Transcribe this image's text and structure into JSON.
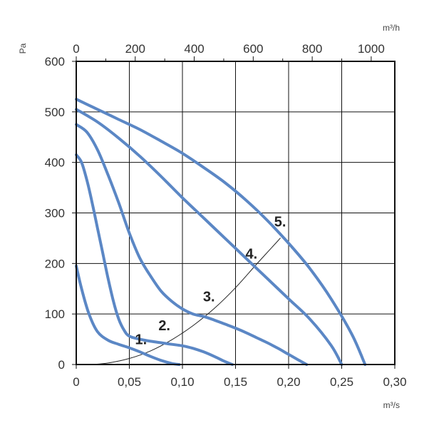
{
  "chart_data": {
    "type": "line",
    "title": "",
    "xlabel": "m³/s",
    "ylabel": "Pa",
    "x2label": "m³/h",
    "xlim": [
      0,
      0.3
    ],
    "ylim": [
      0,
      600
    ],
    "x2lim": [
      0,
      1080
    ],
    "grid": true,
    "x_ticks": [
      0,
      0.05,
      0.1,
      0.15,
      0.2,
      0.25,
      0.3
    ],
    "x_tick_labels": [
      "0",
      "0,05",
      "0,10",
      "0,15",
      "0,20",
      "0,25",
      "0,30"
    ],
    "y_ticks": [
      0,
      100,
      200,
      300,
      400,
      500,
      600
    ],
    "y_tick_labels": [
      "0",
      "100",
      "200",
      "300",
      "400",
      "500",
      "600"
    ],
    "x2_ticks": [
      0,
      200,
      400,
      600,
      800,
      1000
    ],
    "x2_tick_labels": [
      "0",
      "200",
      "400",
      "600",
      "800",
      "1000"
    ],
    "curve_color": "#5b87c5",
    "series": [
      {
        "label": "1.",
        "label_at": [
          0.061,
          40
        ],
        "points": [
          [
            0,
            195
          ],
          [
            0.005,
            150
          ],
          [
            0.012,
            100
          ],
          [
            0.02,
            65
          ],
          [
            0.03,
            48
          ],
          [
            0.04,
            40
          ],
          [
            0.05,
            33
          ],
          [
            0.06,
            25
          ],
          [
            0.07,
            16
          ],
          [
            0.08,
            8
          ],
          [
            0.09,
            2
          ],
          [
            0.097,
            0
          ]
        ]
      },
      {
        "label": "2.",
        "label_at": [
          0.083,
          68
        ],
        "points": [
          [
            0,
            415
          ],
          [
            0.005,
            400
          ],
          [
            0.01,
            365
          ],
          [
            0.015,
            320
          ],
          [
            0.02,
            270
          ],
          [
            0.025,
            220
          ],
          [
            0.03,
            170
          ],
          [
            0.035,
            125
          ],
          [
            0.04,
            90
          ],
          [
            0.045,
            68
          ],
          [
            0.05,
            56
          ],
          [
            0.06,
            50
          ],
          [
            0.07,
            46
          ],
          [
            0.08,
            43
          ],
          [
            0.09,
            40
          ],
          [
            0.1,
            37
          ],
          [
            0.11,
            32
          ],
          [
            0.12,
            25
          ],
          [
            0.13,
            16
          ],
          [
            0.14,
            6
          ],
          [
            0.147,
            0
          ]
        ]
      },
      {
        "label": "3.",
        "label_at": [
          0.125,
          125
        ],
        "points": [
          [
            0,
            475
          ],
          [
            0.01,
            460
          ],
          [
            0.02,
            425
          ],
          [
            0.03,
            375
          ],
          [
            0.04,
            320
          ],
          [
            0.05,
            260
          ],
          [
            0.06,
            210
          ],
          [
            0.07,
            175
          ],
          [
            0.08,
            145
          ],
          [
            0.09,
            125
          ],
          [
            0.1,
            110
          ],
          [
            0.11,
            100
          ],
          [
            0.12,
            95
          ],
          [
            0.13,
            88
          ],
          [
            0.14,
            80
          ],
          [
            0.15,
            72
          ],
          [
            0.16,
            63
          ],
          [
            0.17,
            53
          ],
          [
            0.18,
            43
          ],
          [
            0.19,
            32
          ],
          [
            0.2,
            20
          ],
          [
            0.21,
            8
          ],
          [
            0.217,
            0
          ]
        ]
      },
      {
        "label": "4.",
        "label_at": [
          0.165,
          210
        ],
        "points": [
          [
            0,
            505
          ],
          [
            0.02,
            480
          ],
          [
            0.04,
            448
          ],
          [
            0.06,
            412
          ],
          [
            0.08,
            372
          ],
          [
            0.1,
            330
          ],
          [
            0.12,
            290
          ],
          [
            0.14,
            250
          ],
          [
            0.16,
            210
          ],
          [
            0.18,
            170
          ],
          [
            0.2,
            130
          ],
          [
            0.22,
            90
          ],
          [
            0.24,
            38
          ],
          [
            0.25,
            0
          ]
        ]
      },
      {
        "label": "5.",
        "label_at": [
          0.192,
          273
        ],
        "points": [
          [
            0,
            525
          ],
          [
            0.02,
            505
          ],
          [
            0.04,
            485
          ],
          [
            0.06,
            465
          ],
          [
            0.08,
            442
          ],
          [
            0.1,
            418
          ],
          [
            0.12,
            390
          ],
          [
            0.14,
            360
          ],
          [
            0.16,
            325
          ],
          [
            0.18,
            285
          ],
          [
            0.2,
            240
          ],
          [
            0.22,
            190
          ],
          [
            0.24,
            130
          ],
          [
            0.26,
            58
          ],
          [
            0.272,
            0
          ]
        ]
      }
    ],
    "system_curve": {
      "points": [
        [
          0.015,
          0
        ],
        [
          0.03,
          3
        ],
        [
          0.05,
          12
        ],
        [
          0.07,
          27
        ],
        [
          0.09,
          49
        ],
        [
          0.11,
          77
        ],
        [
          0.13,
          111
        ],
        [
          0.15,
          152
        ],
        [
          0.17,
          199
        ],
        [
          0.19,
          245
        ],
        [
          0.192,
          250
        ]
      ]
    }
  }
}
